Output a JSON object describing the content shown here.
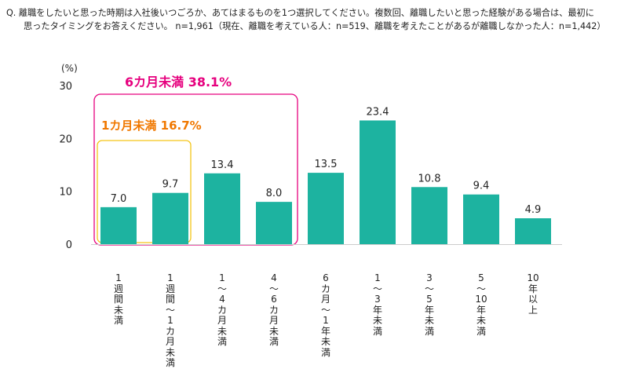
{
  "question": {
    "line1": "Q.  離職をしたいと思った時期は入社後いつごろか、あてはまるものを1つ選択してください。複数回、離職したいと思った経験がある場合は、最初に",
    "line2": "思ったタイミングをお答えください。  n=1,961（現在、離職を考えている人：n=519、離職を考えたことがあるが離職しなかった人：n=1,442）"
  },
  "chart_data": {
    "type": "bar",
    "ylabel": "(%)",
    "ylim": [
      0,
      30
    ],
    "yticks": [
      0,
      10,
      20,
      30
    ],
    "grid": false,
    "bar_color": "#1db3a0",
    "categories": [
      "1週間未満",
      "1週間〜1カ月未満",
      "1〜4カ月未満",
      "4〜6カ月未満",
      "6カ月〜1年未満",
      "1〜3年未満",
      "3〜5年未満",
      "5〜10年未満",
      "10年以上"
    ],
    "category_label_chars": [
      [
        "1",
        "週",
        "間",
        "未",
        "満"
      ],
      [
        "1",
        "週",
        "間",
        "〜",
        "1",
        "カ",
        "月",
        "未",
        "満"
      ],
      [
        "1",
        "〜",
        "4",
        "カ",
        "月",
        "未",
        "満"
      ],
      [
        "4",
        "〜",
        "6",
        "カ",
        "月",
        "未",
        "満"
      ],
      [
        "6",
        "カ",
        "月",
        "〜",
        "1",
        "年",
        "未",
        "満"
      ],
      [
        "1",
        "〜",
        "3",
        "年",
        "未",
        "満"
      ],
      [
        "3",
        "〜",
        "5",
        "年",
        "未",
        "満"
      ],
      [
        "5",
        "〜",
        "10",
        "年",
        "未",
        "満"
      ],
      [
        "10",
        "年",
        "以",
        "上"
      ]
    ],
    "values": [
      7.0,
      9.7,
      13.4,
      8.0,
      13.5,
      23.4,
      10.8,
      9.4,
      4.9
    ],
    "data_labels": [
      "7.0",
      "9.7",
      "13.4",
      "8.0",
      "13.5",
      "23.4",
      "10.8",
      "9.4",
      "4.9"
    ],
    "annotations": [
      {
        "text": "6カ月未満  38.1%",
        "color": "#e6007e",
        "covers": [
          0,
          3
        ]
      },
      {
        "text": "1カ月未満  16.7%",
        "color": "#f07800",
        "covers": [
          0,
          1
        ],
        "box_color": "#f5c518"
      }
    ]
  }
}
